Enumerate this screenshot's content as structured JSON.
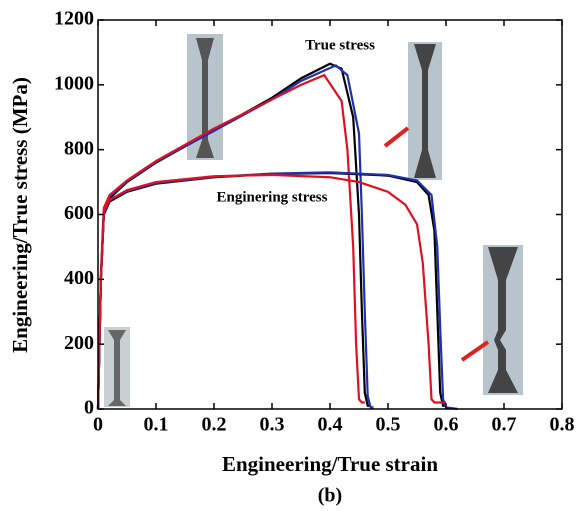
{
  "chart_data": {
    "type": "line",
    "xlabel": "Engineering/True strain",
    "ylabel": "Engineering/True stress (MPa)",
    "caption": "(b)",
    "annotations": [
      "True stress",
      "Enginering stress"
    ],
    "xlim": [
      0,
      0.8
    ],
    "ylim": [
      0,
      1200
    ],
    "xticks": [
      0,
      0.1,
      0.2,
      0.3,
      0.4,
      0.5,
      0.6,
      0.7,
      0.8
    ],
    "yticks": [
      0,
      200,
      400,
      600,
      800,
      1000,
      1200
    ],
    "series": [
      {
        "color": "#000000",
        "x": [
          0,
          0.005,
          0.01,
          0.02,
          0.05,
          0.1,
          0.2,
          0.3,
          0.35,
          0.4,
          0.42,
          0.44,
          0.45,
          0.455,
          0.46,
          0.465,
          0.47
        ],
        "values": [
          0,
          400,
          600,
          650,
          700,
          760,
          860,
          960,
          1020,
          1065,
          1050,
          900,
          600,
          300,
          50,
          10,
          10
        ]
      },
      {
        "color": "#2030b0",
        "x": [
          0,
          0.005,
          0.01,
          0.02,
          0.05,
          0.1,
          0.2,
          0.3,
          0.35,
          0.41,
          0.43,
          0.45,
          0.455,
          0.46,
          0.465,
          0.47,
          0.475
        ],
        "values": [
          0,
          400,
          605,
          655,
          702,
          762,
          858,
          955,
          1012,
          1060,
          1030,
          850,
          600,
          300,
          40,
          5,
          5
        ]
      },
      {
        "color": "#e01020",
        "x": [
          0,
          0.005,
          0.01,
          0.02,
          0.05,
          0.1,
          0.2,
          0.3,
          0.35,
          0.39,
          0.42,
          0.43,
          0.44,
          0.445,
          0.45,
          0.455,
          0.46
        ],
        "values": [
          0,
          420,
          620,
          660,
          705,
          765,
          865,
          955,
          1000,
          1030,
          950,
          800,
          500,
          200,
          30,
          20,
          20
        ]
      },
      {
        "color": "#000000",
        "x": [
          0,
          0.005,
          0.01,
          0.02,
          0.05,
          0.1,
          0.2,
          0.3,
          0.4,
          0.5,
          0.55,
          0.57,
          0.58,
          0.585,
          0.59,
          0.595,
          0.6
        ],
        "values": [
          0,
          400,
          600,
          640,
          670,
          695,
          715,
          725,
          728,
          720,
          700,
          660,
          550,
          300,
          50,
          10,
          10
        ]
      },
      {
        "color": "#2030b0",
        "x": [
          0,
          0.005,
          0.01,
          0.02,
          0.05,
          0.1,
          0.2,
          0.3,
          0.4,
          0.5,
          0.55,
          0.575,
          0.585,
          0.59,
          0.595,
          0.6,
          0.62
        ],
        "values": [
          0,
          400,
          605,
          645,
          672,
          697,
          716,
          726,
          730,
          722,
          705,
          660,
          500,
          250,
          30,
          5,
          0
        ]
      },
      {
        "color": "#e01020",
        "x": [
          0,
          0.005,
          0.01,
          0.02,
          0.05,
          0.1,
          0.2,
          0.3,
          0.4,
          0.45,
          0.5,
          0.53,
          0.55,
          0.56,
          0.57,
          0.575,
          0.58,
          0.6
        ],
        "values": [
          0,
          400,
          610,
          645,
          675,
          700,
          718,
          722,
          715,
          700,
          670,
          630,
          570,
          450,
          200,
          30,
          20,
          20
        ]
      }
    ]
  }
}
